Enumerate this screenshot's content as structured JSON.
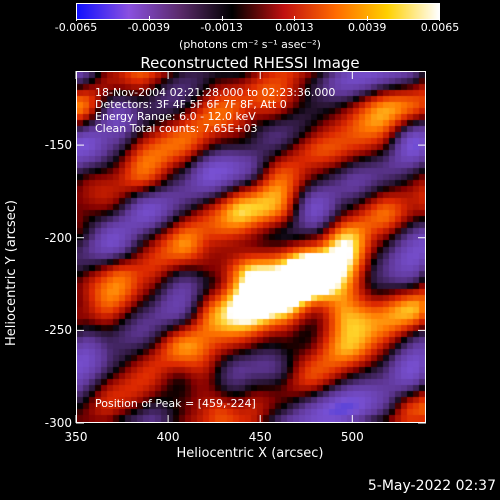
{
  "colorbar": {
    "ticks": [
      "-0.0065",
      "-0.0039",
      "-0.0013",
      "0.0013",
      "0.0039",
      "0.0065"
    ],
    "units": "(photons cm⁻² s⁻¹ asec⁻²)",
    "colors": [
      "#1010ff",
      "#8a50e0",
      "#5a2a6a",
      "#000000",
      "#c01010",
      "#ff6a00",
      "#ffd000",
      "#ffffff"
    ]
  },
  "title": "Reconstructed RHESSI Image",
  "info": {
    "line1": "18-Nov-2004 02:21:28.000 to 02:23:36.000",
    "line2": "Detectors: 3F 4F 5F 6F 7F 8F, Att 0",
    "line3": "Energy Range: 6.0 - 12.0 keV",
    "line4": "Clean    Total counts: 7.65E+03",
    "peak": "Position of Peak = [459,-224]"
  },
  "axes": {
    "xlabel": "Heliocentric X (arcsec)",
    "ylabel": "Heliocentric Y (arcsec)",
    "xticks": [
      "350",
      "400",
      "450",
      "500"
    ],
    "yticks": [
      "-150",
      "-200",
      "-250",
      "-300"
    ],
    "xrange": [
      350,
      540
    ],
    "yrange": [
      -300,
      -110
    ]
  },
  "datestamp": "5-May-2022 02:37"
}
